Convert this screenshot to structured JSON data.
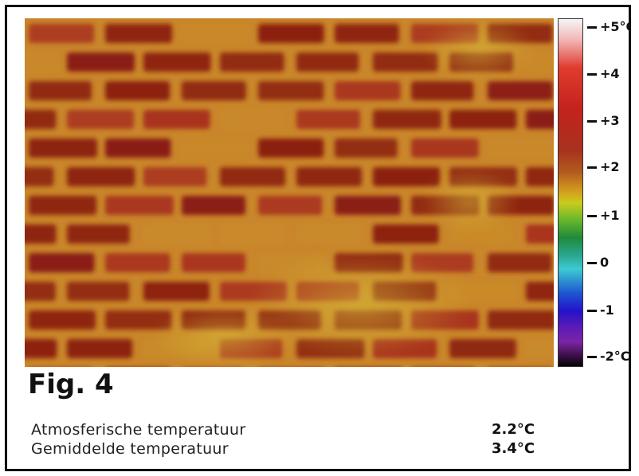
{
  "figure": {
    "title": "Fig. 4"
  },
  "thermal_image": {
    "subject": "brick-wall-infrared",
    "palette": "iron",
    "dominant_colors": [
      "#8a1c12",
      "#a8321d",
      "#c98a2a",
      "#d7c13a"
    ]
  },
  "color_scale": {
    "ticks": [
      {
        "label": "+5°C",
        "value": 5
      },
      {
        "label": "+4",
        "value": 4
      },
      {
        "label": "+3",
        "value": 3
      },
      {
        "label": "+2",
        "value": 2
      },
      {
        "label": "+1",
        "value": 1
      },
      {
        "label": "0",
        "value": 0
      },
      {
        "label": "-1",
        "value": -1
      },
      {
        "label": "-2°C",
        "value": -2
      }
    ]
  },
  "readings": [
    {
      "label": "Atmosferische temperatuur",
      "value": "2.2°C"
    },
    {
      "label": "Gemiddelde temperatuur",
      "value": "3.4°C"
    }
  ]
}
